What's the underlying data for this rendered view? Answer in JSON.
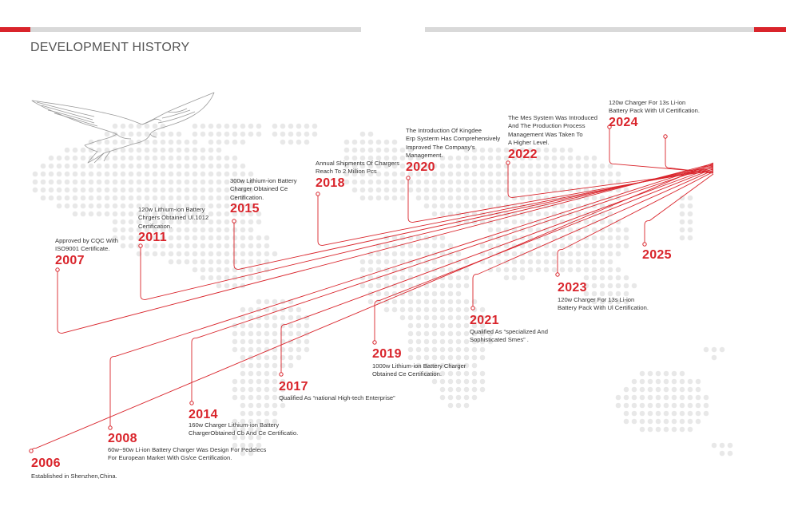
{
  "page": {
    "title": "DEVELOPMENT HISTORY",
    "accent_color": "#d9242b",
    "map_dot_color": "#e8e8e8"
  },
  "milestones": [
    {
      "year": "2006",
      "text": "Established in Shenzhen,China."
    },
    {
      "year": "2007",
      "text": "Approved by CQC With\nISO9001 Certificate."
    },
    {
      "year": "2008",
      "text": "60w~90w Li-ion Battery Charger Was Design For Pedelecs\nFor European Market With Gs/ce Certification."
    },
    {
      "year": "2011",
      "text": "120w  Lithium-ion Battery\nChrgers Obtained Ul.1012\nCertification."
    },
    {
      "year": "2014",
      "text": "160w Charger Lithium-ion Battery\nChargerObtained Cb And Ce Certificatio."
    },
    {
      "year": "2015",
      "text": "300w Lithium-ion Battery\nCharger Obtained Ce\nCertification."
    },
    {
      "year": "2017",
      "text": "Qualified As “national High-tech Enterprise”"
    },
    {
      "year": "2018",
      "text": "Annual Shipments Of Chargers\nReach To 2 Million Pcs"
    },
    {
      "year": "2019",
      "text": "1000w Lithium-ion Battery Charger\nObtained Ce Certification."
    },
    {
      "year": "2020",
      "text": "The Introduction Of Kingdee\nErp Systerm Has Comprehensively\nImproved The Company's\nManagement."
    },
    {
      "year": "2021",
      "text": "Qualified As “specialized And\nSophisticated Smes” ."
    },
    {
      "year": "2022",
      "text": "The Mes System Was Introduced\nAnd The Production Process\nManagement Was Taken To\nA Higher Level."
    },
    {
      "year": "2023",
      "text": "120w Charger For 13s Li-ion\nBattery Pack With Ul Certification."
    },
    {
      "year": "2024",
      "text": "120w Charger For 13s Li-ion\nBattery Pack With Ul Certification."
    },
    {
      "year": "2025",
      "text": ""
    }
  ]
}
